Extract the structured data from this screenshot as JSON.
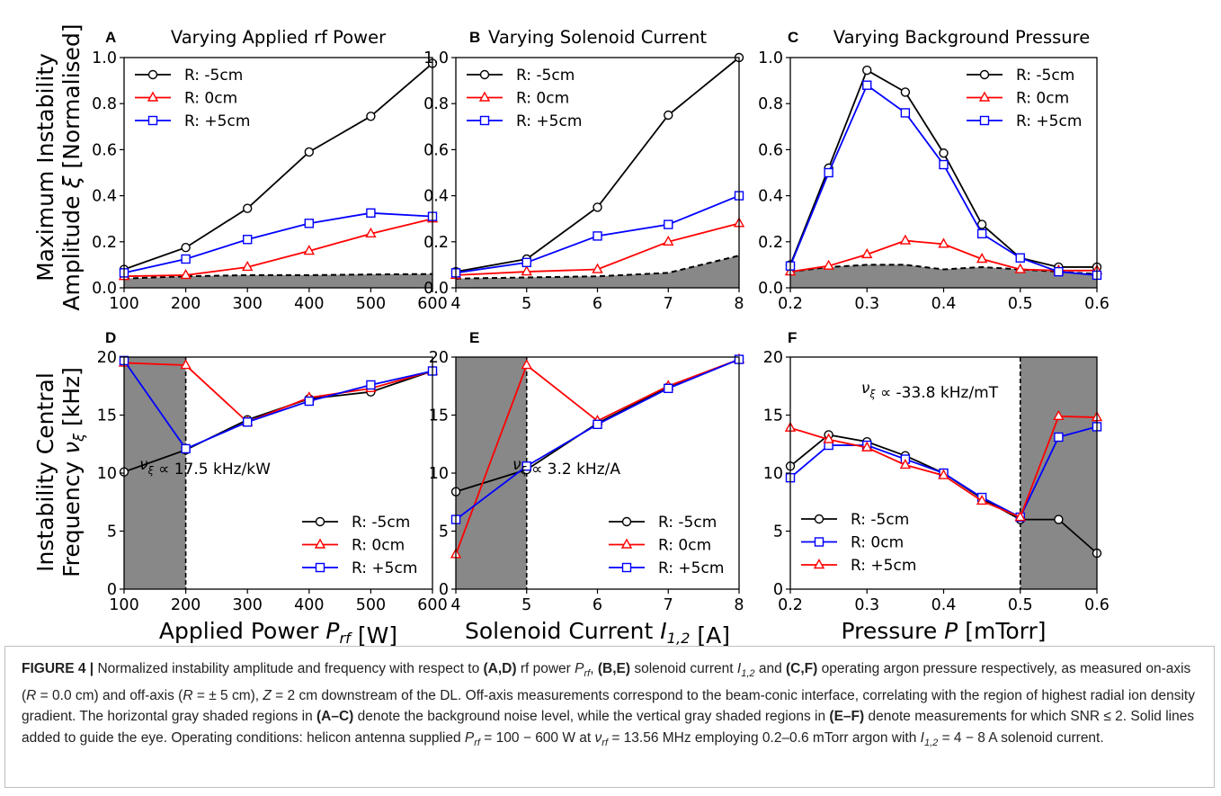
{
  "figure": {
    "shared_labels": {
      "top_ylabel": [
        "Maximum Instability",
        "Amplitude ξ [Normalised]"
      ],
      "bottom_ylabel": [
        "Instability Central",
        "Frequency ν",
        "ξ",
        " [kHz]"
      ]
    },
    "caption": {
      "label": "FIGURE 4 |",
      "segments": [
        {
          "t": " Normalized instability amplitude and frequency with respect to "
        },
        {
          "b": "(A,D)"
        },
        {
          "t": " rf power "
        },
        {
          "i": "P"
        },
        {
          "sub": "rf"
        },
        {
          "t": ", "
        },
        {
          "b": "(B,E)"
        },
        {
          "t": " solenoid current "
        },
        {
          "i": "I"
        },
        {
          "sub": "1,2"
        },
        {
          "t": " and "
        },
        {
          "b": "(C,F)"
        },
        {
          "t": " operating argon pressure respectively, as measured on-axis ("
        },
        {
          "i": "R"
        },
        {
          "t": " = 0.0 cm) and off-axis ("
        },
        {
          "i": "R"
        },
        {
          "t": " = ± 5 cm), "
        },
        {
          "i": "Z"
        },
        {
          "t": " = 2 cm downstream of the DL. Off-axis measurements correspond to the beam-conic interface, correlating with the region of highest radial ion density gradient. The horizontal gray shaded regions in "
        },
        {
          "b": "(A–C)"
        },
        {
          "t": " denote the background noise level, while the vertical gray shaded regions in "
        },
        {
          "b": "(E–F)"
        },
        {
          "t": " denote measurements for which SNR ≤ 2. Solid lines added to guide the eye. Operating conditions: helicon antenna supplied "
        },
        {
          "i": "P"
        },
        {
          "sub": "rf"
        },
        {
          "t": " = 100 − 600 W at "
        },
        {
          "i": "ν"
        },
        {
          "sub": "rf"
        },
        {
          "t": " = 13.56 MHz employing 0.2–0.6 mTorr argon with "
        },
        {
          "i": "I"
        },
        {
          "sub": "1,2"
        },
        {
          "t": " = 4 − 8 A solenoid current."
        }
      ]
    }
  },
  "chart_data": [
    {
      "panel": "A",
      "type": "line",
      "title": "Varying Applied rf Power",
      "x": [
        100,
        200,
        300,
        400,
        500,
        600
      ],
      "xlim": [
        100,
        600
      ],
      "ylim": [
        0,
        1.0
      ],
      "xticks": [
        "100",
        "200",
        "300",
        "400",
        "500",
        "600"
      ],
      "yticks": [
        "0.0",
        "0.2",
        "0.4",
        "0.6",
        "0.8",
        "1.0"
      ],
      "legend": "top-left",
      "series": [
        {
          "name": "R: -5cm",
          "color": "#000000",
          "marker": "circle",
          "values": [
            0.08,
            0.175,
            0.345,
            0.59,
            0.745,
            0.975
          ]
        },
        {
          "name": "R: 0cm",
          "color": "#ff0000",
          "marker": "triangle",
          "values": [
            0.05,
            0.055,
            0.09,
            0.16,
            0.235,
            0.3
          ]
        },
        {
          "name": "R: +5cm",
          "color": "#0000ff",
          "marker": "square",
          "values": [
            0.065,
            0.125,
            0.21,
            0.28,
            0.325,
            0.31
          ]
        }
      ],
      "noise": [
        0.04,
        0.05,
        0.055,
        0.055,
        0.058,
        0.06
      ]
    },
    {
      "panel": "B",
      "type": "line",
      "title": "Varying Solenoid Current",
      "x": [
        4,
        5,
        6,
        7,
        8
      ],
      "xlim": [
        4,
        8
      ],
      "ylim": [
        0,
        1.0
      ],
      "xticks": [
        "4",
        "5",
        "6",
        "7",
        "8"
      ],
      "yticks": [
        "0.0",
        "0.2",
        "0.4",
        "0.6",
        "0.8",
        "1.0"
      ],
      "legend": "top-left",
      "series": [
        {
          "name": "R: -5cm",
          "color": "#000000",
          "marker": "circle",
          "values": [
            0.07,
            0.125,
            0.35,
            0.75,
            1.0
          ]
        },
        {
          "name": "R: 0cm",
          "color": "#ff0000",
          "marker": "triangle",
          "values": [
            0.055,
            0.07,
            0.08,
            0.2,
            0.28
          ]
        },
        {
          "name": "R: +5cm",
          "color": "#0000ff",
          "marker": "square",
          "values": [
            0.065,
            0.11,
            0.225,
            0.275,
            0.4
          ]
        }
      ],
      "noise": [
        0.04,
        0.045,
        0.05,
        0.065,
        0.14
      ]
    },
    {
      "panel": "C",
      "type": "line",
      "title": "Varying Background Pressure",
      "x": [
        0.2,
        0.25,
        0.3,
        0.35,
        0.4,
        0.45,
        0.5,
        0.55,
        0.6
      ],
      "xlim": [
        0.2,
        0.6
      ],
      "ylim": [
        0,
        1.0
      ],
      "xticks": [
        "0.2",
        "0.3",
        "0.4",
        "0.5",
        "0.6"
      ],
      "yticks": [
        "0.0",
        "0.2",
        "0.4",
        "0.6",
        "0.8",
        "1.0"
      ],
      "legend": "top-right",
      "series": [
        {
          "name": "R: -5cm",
          "color": "#000000",
          "marker": "circle",
          "values": [
            0.1,
            0.52,
            0.945,
            0.85,
            0.585,
            0.275,
            0.13,
            0.09,
            0.09
          ]
        },
        {
          "name": "R: 0cm",
          "color": "#ff0000",
          "marker": "triangle",
          "values": [
            0.07,
            0.095,
            0.145,
            0.205,
            0.19,
            0.125,
            0.08,
            0.075,
            0.075
          ]
        },
        {
          "name": "R: +5cm",
          "color": "#0000ff",
          "marker": "square",
          "values": [
            0.095,
            0.5,
            0.88,
            0.76,
            0.535,
            0.235,
            0.13,
            0.07,
            0.055
          ]
        }
      ],
      "noise": [
        0.07,
        0.09,
        0.1,
        0.1,
        0.08,
        0.09,
        0.08,
        0.07,
        0.06
      ]
    },
    {
      "panel": "D",
      "type": "line",
      "title": "",
      "x": [
        100,
        200,
        300,
        400,
        500,
        600
      ],
      "xlim": [
        100,
        600
      ],
      "ylim": [
        0,
        20
      ],
      "xticks": [
        "100",
        "200",
        "300",
        "400",
        "500",
        "600"
      ],
      "yticks": [
        "0",
        "5",
        "10",
        "15",
        "20"
      ],
      "xlabel": "Applied Power P_rf [W]",
      "legend": "bottom-right",
      "annotation": "ν_ξ ∝ 17.5 kHz/kW",
      "shade_x": [
        100,
        200
      ],
      "vline_x": 200,
      "series": [
        {
          "name": "R: -5cm",
          "color": "#000000",
          "marker": "circle",
          "values": [
            10.1,
            12.0,
            14.6,
            16.4,
            17.0,
            18.8
          ]
        },
        {
          "name": "R: 0cm",
          "color": "#ff0000",
          "marker": "triangle",
          "values": [
            19.5,
            19.3,
            14.4,
            16.5,
            17.3,
            18.8
          ]
        },
        {
          "name": "R: +5cm",
          "color": "#0000ff",
          "marker": "square",
          "values": [
            19.7,
            12.1,
            14.4,
            16.2,
            17.6,
            18.8
          ]
        }
      ]
    },
    {
      "panel": "E",
      "type": "line",
      "title": "",
      "x": [
        4,
        5,
        6,
        7,
        8
      ],
      "xlim": [
        4,
        8
      ],
      "ylim": [
        0,
        20
      ],
      "xticks": [
        "4",
        "5",
        "6",
        "7",
        "8"
      ],
      "yticks": [
        "0",
        "5",
        "10",
        "15",
        "20"
      ],
      "xlabel": "Solenoid Current I_1,2 [A]",
      "legend": "bottom-right",
      "annotation": "ν_ξ ∝ 3.2 kHz/A",
      "shade_x": [
        4,
        5
      ],
      "vline_x": 5,
      "series": [
        {
          "name": "R: -5cm",
          "color": "#000000",
          "marker": "circle",
          "values": [
            8.4,
            10.3,
            14.3,
            17.4,
            19.8
          ]
        },
        {
          "name": "R: 0cm",
          "color": "#ff0000",
          "marker": "triangle",
          "values": [
            3.0,
            19.3,
            14.5,
            17.5,
            19.8
          ]
        },
        {
          "name": "R: +5cm",
          "color": "#0000ff",
          "marker": "square",
          "values": [
            6.0,
            10.6,
            14.2,
            17.3,
            19.8
          ]
        }
      ]
    },
    {
      "panel": "F",
      "type": "line",
      "title": "",
      "x": [
        0.2,
        0.25,
        0.3,
        0.35,
        0.4,
        0.45,
        0.5,
        0.55,
        0.6
      ],
      "xlim": [
        0.2,
        0.6
      ],
      "ylim": [
        0,
        20
      ],
      "xticks": [
        "0.2",
        "0.3",
        "0.4",
        "0.5",
        "0.6"
      ],
      "yticks": [
        "0",
        "5",
        "10",
        "15",
        "20"
      ],
      "xlabel": "Pressure P [mTorr]",
      "legend": "bottom-left",
      "annotation": "ν_ξ ∝ -33.8 kHz/mT",
      "shade_x": [
        0.5,
        0.6
      ],
      "vline_x": 0.5,
      "series": [
        {
          "name": "R: -5cm",
          "color": "#000000",
          "marker": "circle",
          "values": [
            10.6,
            13.3,
            12.7,
            11.5,
            10.0,
            7.8,
            6.0,
            6.0,
            3.1
          ]
        },
        {
          "name": "R: 0cm",
          "color": "#0000ff",
          "marker": "square",
          "values": [
            9.6,
            12.4,
            12.4,
            11.2,
            10.0,
            7.9,
            6.2,
            13.1,
            14.0
          ]
        },
        {
          "name": "R: +5cm",
          "color": "#ff0000",
          "marker": "triangle",
          "values": [
            13.9,
            12.9,
            12.2,
            10.7,
            9.8,
            7.6,
            6.2,
            14.9,
            14.8
          ]
        }
      ]
    }
  ]
}
